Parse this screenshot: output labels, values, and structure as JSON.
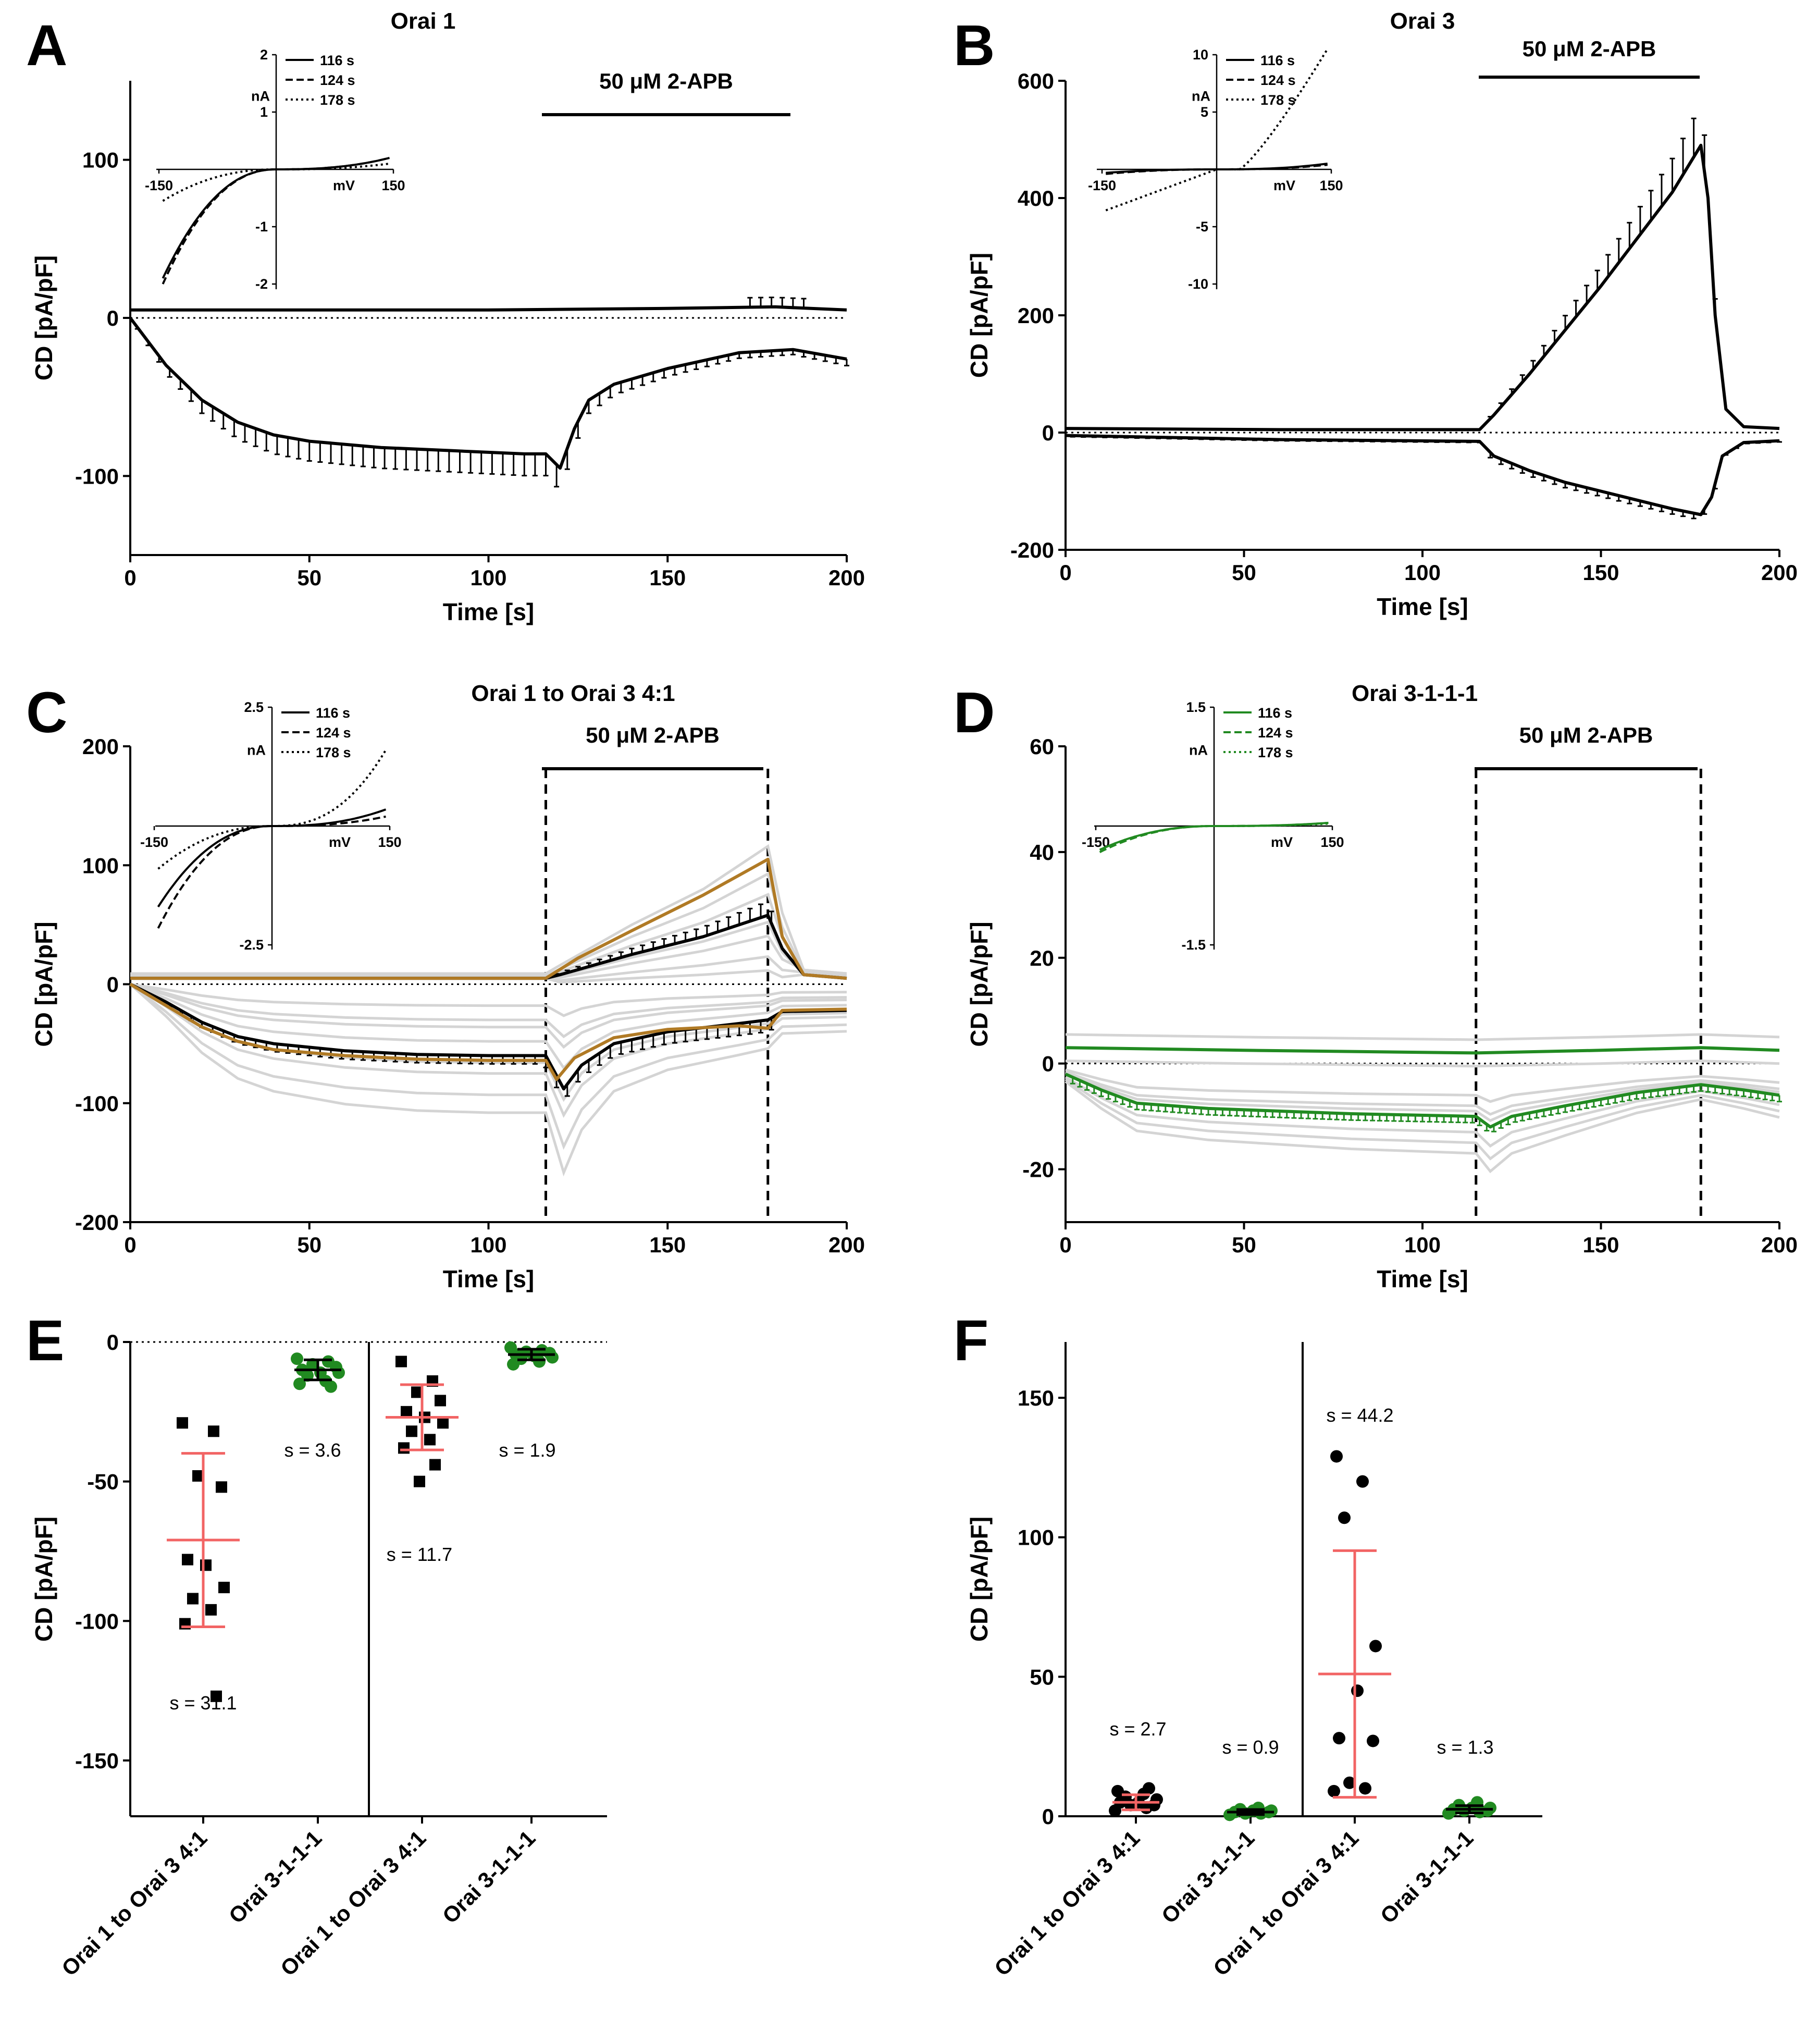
{
  "figure": {
    "panels": [
      {
        "id": "A",
        "title": "Orai 1"
      },
      {
        "id": "B",
        "title": "Orai 3"
      },
      {
        "id": "C",
        "title": "Orai 1 to Orai 3 4:1"
      },
      {
        "id": "D",
        "title": "Orai 3-1-1-1"
      },
      {
        "id": "E",
        "title": ""
      },
      {
        "id": "F",
        "title": ""
      }
    ],
    "time_xlabel": "Time [s]",
    "ylabel": "CD [pA/pF]",
    "bar_label": "50 μM 2-APB",
    "inset": {
      "ylabel": "nA",
      "xlabel": "mV",
      "legend": [
        "116 s",
        "124 s",
        "178 s"
      ]
    },
    "colors": {
      "black": "#000000",
      "gray": "#d4d4d4",
      "brown": "#b07a25",
      "green": "#218a21",
      "red": "#f26464"
    }
  },
  "chart_data": [
    {
      "panel": "A",
      "type": "line",
      "title": "Orai 1",
      "xlabel": "Time [s]",
      "ylabel": "CD [pA/pF]",
      "xlim": [
        0,
        200
      ],
      "ylim": [
        -150,
        150
      ],
      "xticks": [
        0,
        50,
        100,
        150,
        200
      ],
      "yticks": [
        -100,
        0,
        100
      ],
      "treatment": {
        "label": "50 μM 2-APB",
        "start": 116,
        "end": 185
      },
      "series": [
        {
          "name": "outward",
          "points": [
            [
              0,
              5
            ],
            [
              50,
              5
            ],
            [
              100,
              5
            ],
            [
              150,
              6
            ],
            [
              180,
              7
            ],
            [
              200,
              5
            ]
          ]
        },
        {
          "name": "inward",
          "points": [
            [
              0,
              0
            ],
            [
              10,
              -30
            ],
            [
              20,
              -52
            ],
            [
              30,
              -66
            ],
            [
              40,
              -74
            ],
            [
              50,
              -78
            ],
            [
              70,
              -82
            ],
            [
              90,
              -84
            ],
            [
              110,
              -86
            ],
            [
              116,
              -86
            ],
            [
              120,
              -95
            ],
            [
              124,
              -70
            ],
            [
              128,
              -52
            ],
            [
              135,
              -42
            ],
            [
              150,
              -32
            ],
            [
              170,
              -22
            ],
            [
              185,
              -20
            ],
            [
              200,
              -26
            ]
          ]
        }
      ],
      "inset": {
        "ylim": [
          -2,
          2
        ],
        "yticks": [
          -2,
          -1,
          1,
          2
        ],
        "xticks": [
          -150,
          150
        ],
        "legend": [
          "116 s",
          "124 s",
          "178 s"
        ]
      }
    },
    {
      "panel": "B",
      "type": "line",
      "title": "Orai 3",
      "xlabel": "Time [s]",
      "ylabel": "CD [pA/pF]",
      "xlim": [
        0,
        200
      ],
      "ylim": [
        -200,
        600
      ],
      "xticks": [
        0,
        50,
        100,
        150,
        200
      ],
      "yticks": [
        -200,
        0,
        200,
        400,
        600
      ],
      "treatment": {
        "label": "50 μM 2-APB",
        "start": 116,
        "end": 178
      },
      "series": [
        {
          "name": "outward",
          "points": [
            [
              0,
              7
            ],
            [
              60,
              5
            ],
            [
              116,
              5
            ],
            [
              120,
              30
            ],
            [
              130,
              100
            ],
            [
              140,
              175
            ],
            [
              150,
              250
            ],
            [
              160,
              330
            ],
            [
              170,
              410
            ],
            [
              178,
              490
            ],
            [
              180,
              400
            ],
            [
              182,
              200
            ],
            [
              185,
              40
            ],
            [
              190,
              10
            ],
            [
              200,
              7
            ]
          ]
        },
        {
          "name": "inward",
          "points": [
            [
              0,
              -5
            ],
            [
              60,
              -12
            ],
            [
              116,
              -15
            ],
            [
              120,
              -40
            ],
            [
              130,
              -65
            ],
            [
              140,
              -85
            ],
            [
              150,
              -100
            ],
            [
              160,
              -115
            ],
            [
              170,
              -130
            ],
            [
              178,
              -140
            ],
            [
              181,
              -110
            ],
            [
              184,
              -40
            ],
            [
              190,
              -17
            ],
            [
              200,
              -14
            ]
          ]
        }
      ],
      "inset": {
        "ylim": [
          -10,
          10
        ],
        "yticks": [
          -10,
          -5,
          5,
          10
        ],
        "xticks": [
          -150,
          150
        ],
        "legend": [
          "116 s",
          "124 s",
          "178 s"
        ]
      }
    },
    {
      "panel": "C",
      "type": "line",
      "title": "Orai 1 to Orai 3 4:1",
      "xlabel": "Time [s]",
      "ylabel": "CD [pA/pF]",
      "xlim": [
        0,
        200
      ],
      "ylim": [
        -200,
        200
      ],
      "xticks": [
        0,
        50,
        100,
        150,
        200
      ],
      "yticks": [
        -200,
        -100,
        0,
        100,
        200
      ],
      "treatment": {
        "label": "50 μM 2-APB",
        "start": 116,
        "end": 178
      },
      "series": [
        {
          "name": "mean outward",
          "color": "black",
          "points": [
            [
              0,
              5
            ],
            [
              116,
              5
            ],
            [
              120,
              8
            ],
            [
              140,
              25
            ],
            [
              160,
              40
            ],
            [
              178,
              58
            ],
            [
              182,
              30
            ],
            [
              188,
              8
            ],
            [
              200,
              5
            ]
          ]
        },
        {
          "name": "mean inward",
          "color": "black",
          "points": [
            [
              0,
              0
            ],
            [
              10,
              -15
            ],
            [
              20,
              -32
            ],
            [
              30,
              -44
            ],
            [
              40,
              -50
            ],
            [
              60,
              -56
            ],
            [
              80,
              -59
            ],
            [
              100,
              -60
            ],
            [
              116,
              -60
            ],
            [
              121,
              -88
            ],
            [
              126,
              -68
            ],
            [
              135,
              -50
            ],
            [
              150,
              -40
            ],
            [
              170,
              -33
            ],
            [
              178,
              -30
            ],
            [
              182,
              -23
            ],
            [
              200,
              -22
            ]
          ]
        },
        {
          "name": "example outward",
          "color": "brown",
          "points": [
            [
              0,
              5
            ],
            [
              116,
              5
            ],
            [
              125,
              22
            ],
            [
              140,
              45
            ],
            [
              160,
              75
            ],
            [
              178,
              105
            ],
            [
              182,
              40
            ],
            [
              188,
              8
            ],
            [
              200,
              5
            ]
          ]
        },
        {
          "name": "example inward",
          "color": "brown",
          "points": [
            [
              0,
              0
            ],
            [
              10,
              -18
            ],
            [
              20,
              -36
            ],
            [
              30,
              -48
            ],
            [
              40,
              -55
            ],
            [
              60,
              -60
            ],
            [
              80,
              -63
            ],
            [
              100,
              -64
            ],
            [
              116,
              -64
            ],
            [
              119,
              -80
            ],
            [
              124,
              -62
            ],
            [
              135,
              -45
            ],
            [
              150,
              -38
            ],
            [
              170,
              -35
            ],
            [
              178,
              -37
            ],
            [
              182,
              -22
            ],
            [
              200,
              -21
            ]
          ]
        }
      ],
      "inset": {
        "ylim": [
          -2.5,
          2.5
        ],
        "yticks": [
          -2.5,
          2.5
        ],
        "xticks": [
          -150,
          150
        ],
        "legend": [
          "116 s",
          "124 s",
          "178 s"
        ]
      }
    },
    {
      "panel": "D",
      "type": "line",
      "title": "Orai 3-1-1-1",
      "xlabel": "Time [s]",
      "ylabel": "CD [pA/pF]",
      "xlim": [
        0,
        200
      ],
      "ylim": [
        -30,
        60
      ],
      "xticks": [
        0,
        50,
        100,
        150,
        200
      ],
      "yticks": [
        -20,
        0,
        20,
        40,
        60
      ],
      "treatment": {
        "label": "50 μM 2-APB",
        "start": 115,
        "end": 178
      },
      "series": [
        {
          "name": "mean outward",
          "color": "green",
          "points": [
            [
              0,
              3
            ],
            [
              50,
              2.5
            ],
            [
              115,
              2
            ],
            [
              150,
              2.5
            ],
            [
              178,
              3
            ],
            [
              200,
              2.5
            ]
          ]
        },
        {
          "name": "mean inward",
          "color": "green",
          "points": [
            [
              0,
              -2
            ],
            [
              10,
              -5
            ],
            [
              20,
              -7.5
            ],
            [
              40,
              -8.5
            ],
            [
              60,
              -9
            ],
            [
              80,
              -9.5
            ],
            [
              115,
              -10
            ],
            [
              119,
              -12
            ],
            [
              125,
              -10
            ],
            [
              140,
              -8
            ],
            [
              160,
              -5.5
            ],
            [
              178,
              -4
            ],
            [
              190,
              -5
            ],
            [
              200,
              -6
            ]
          ]
        }
      ],
      "inset": {
        "ylim": [
          -1.5,
          1.5
        ],
        "yticks": [
          -1.5,
          1.5
        ],
        "xticks": [
          -150,
          150
        ],
        "legend": [
          "116 s",
          "124 s",
          "178 s"
        ]
      }
    },
    {
      "panel": "E",
      "type": "scatter",
      "ylabel": "CD [pA/pF]",
      "ylim": [
        -170,
        0
      ],
      "yticks": [
        -150,
        -100,
        -50,
        0
      ],
      "categories": [
        "Orai 1 to Orai 3 4:1",
        "Orai 3-1-1-1",
        "Orai 1 to Orai 3 4:1",
        "Orai 3-1-1-1"
      ],
      "groups": [
        {
          "category": "Orai 1 to Orai 3 4:1",
          "marker": "square",
          "color": "black",
          "mean": -71,
          "sd": 31.1,
          "sd_label": "s = 31.1",
          "values": [
            -29,
            -32,
            -48,
            -52,
            -78,
            -80,
            -88,
            -92,
            -96,
            -101,
            -127
          ]
        },
        {
          "category": "Orai 3-1-1-1",
          "marker": "circle",
          "color": "green",
          "mean": -10,
          "sd": 3.6,
          "sd_label": "s = 3.6",
          "values": [
            -6,
            -7,
            -8,
            -9,
            -10,
            -11,
            -11,
            -12,
            -14,
            -15,
            -16
          ]
        },
        {
          "category": "Orai 1 to Orai 3 4:1",
          "marker": "square",
          "color": "black",
          "mean": -27,
          "sd": 11.7,
          "sd_label": "s = 11.7",
          "values": [
            -7,
            -14,
            -18,
            -21,
            -25,
            -27,
            -29,
            -32,
            -35,
            -38,
            -44,
            -50
          ]
        },
        {
          "category": "Orai 3-1-1-1",
          "marker": "circle",
          "color": "green",
          "mean": -4.5,
          "sd": 1.9,
          "sd_label": "s = 1.9",
          "values": [
            -2,
            -3,
            -3.5,
            -4,
            -4.5,
            -5,
            -5.5,
            -6,
            -7,
            -8
          ]
        }
      ]
    },
    {
      "panel": "F",
      "type": "scatter",
      "ylabel": "CD [pA/pF]",
      "ylim": [
        0,
        170
      ],
      "yticks": [
        0,
        50,
        100,
        150
      ],
      "categories": [
        "Orai 1 to Orai 3 4:1",
        "Orai 3-1-1-1",
        "Orai 1 to Orai 3 4:1",
        "Orai 3-1-1-1"
      ],
      "groups": [
        {
          "category": "Orai 1 to Orai 3 4:1",
          "marker": "circle",
          "color": "black",
          "mean": 5,
          "sd": 2.7,
          "sd_label": "s = 2.7",
          "values": [
            2,
            3,
            4,
            4,
            5,
            5,
            6,
            7,
            8,
            9,
            10
          ]
        },
        {
          "category": "Orai 3-1-1-1",
          "marker": "circle",
          "color": "green",
          "mean": 1.5,
          "sd": 0.9,
          "sd_label": "s = 0.9",
          "values": [
            0.5,
            1,
            1,
            1.5,
            1.5,
            2,
            2,
            2.5,
            3
          ]
        },
        {
          "category": "Orai 1 to Orai 3 4:1",
          "marker": "circle",
          "color": "black",
          "mean": 51,
          "sd": 44.2,
          "sd_label": "s = 44.2",
          "values": [
            9,
            10,
            12,
            27,
            28,
            45,
            61,
            107,
            120,
            129
          ]
        },
        {
          "category": "Orai 3-1-1-1",
          "marker": "circle",
          "color": "green",
          "mean": 2.5,
          "sd": 1.3,
          "sd_label": "s = 1.3",
          "values": [
            1,
            1.5,
            2,
            2,
            2.5,
            3,
            3,
            4,
            5
          ]
        }
      ]
    }
  ]
}
